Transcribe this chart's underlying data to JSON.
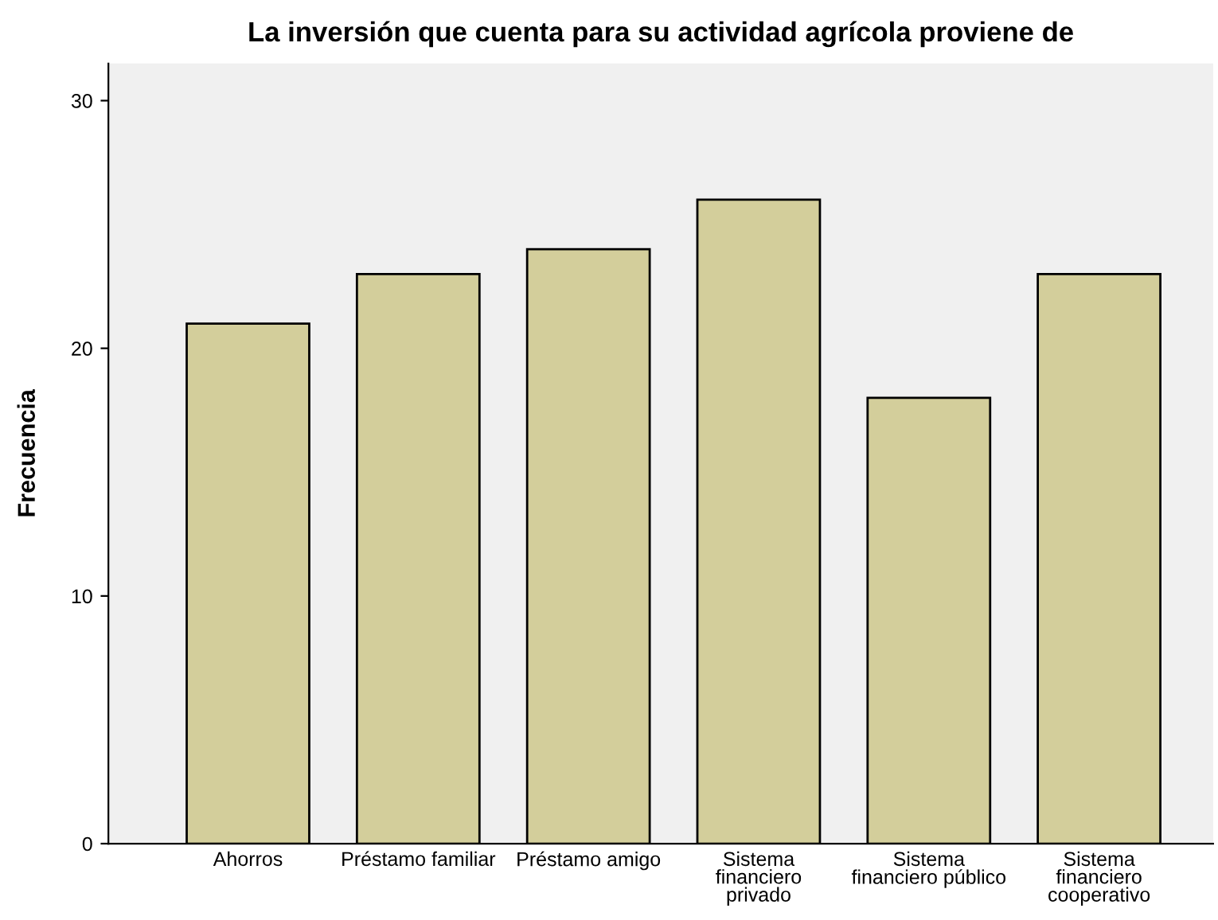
{
  "chart_data": {
    "type": "bar",
    "title": "La inversión que cuenta para su actividad agrícola proviene de",
    "ylabel": "Frecuencia",
    "categories": [
      "Ahorros",
      "Préstamo familiar",
      "Préstamo amigo",
      "Sistema\nfinanciero\nprivado",
      "Sistema\nfinanciero público",
      "Sistema\nfinanciero\ncooperativo"
    ],
    "values": [
      21,
      23,
      24,
      26,
      18,
      23
    ],
    "color": "#d3ce9b",
    "ylim": [
      0,
      31.5
    ],
    "yticks": [
      0,
      10,
      20,
      30
    ],
    "grid": false
  }
}
